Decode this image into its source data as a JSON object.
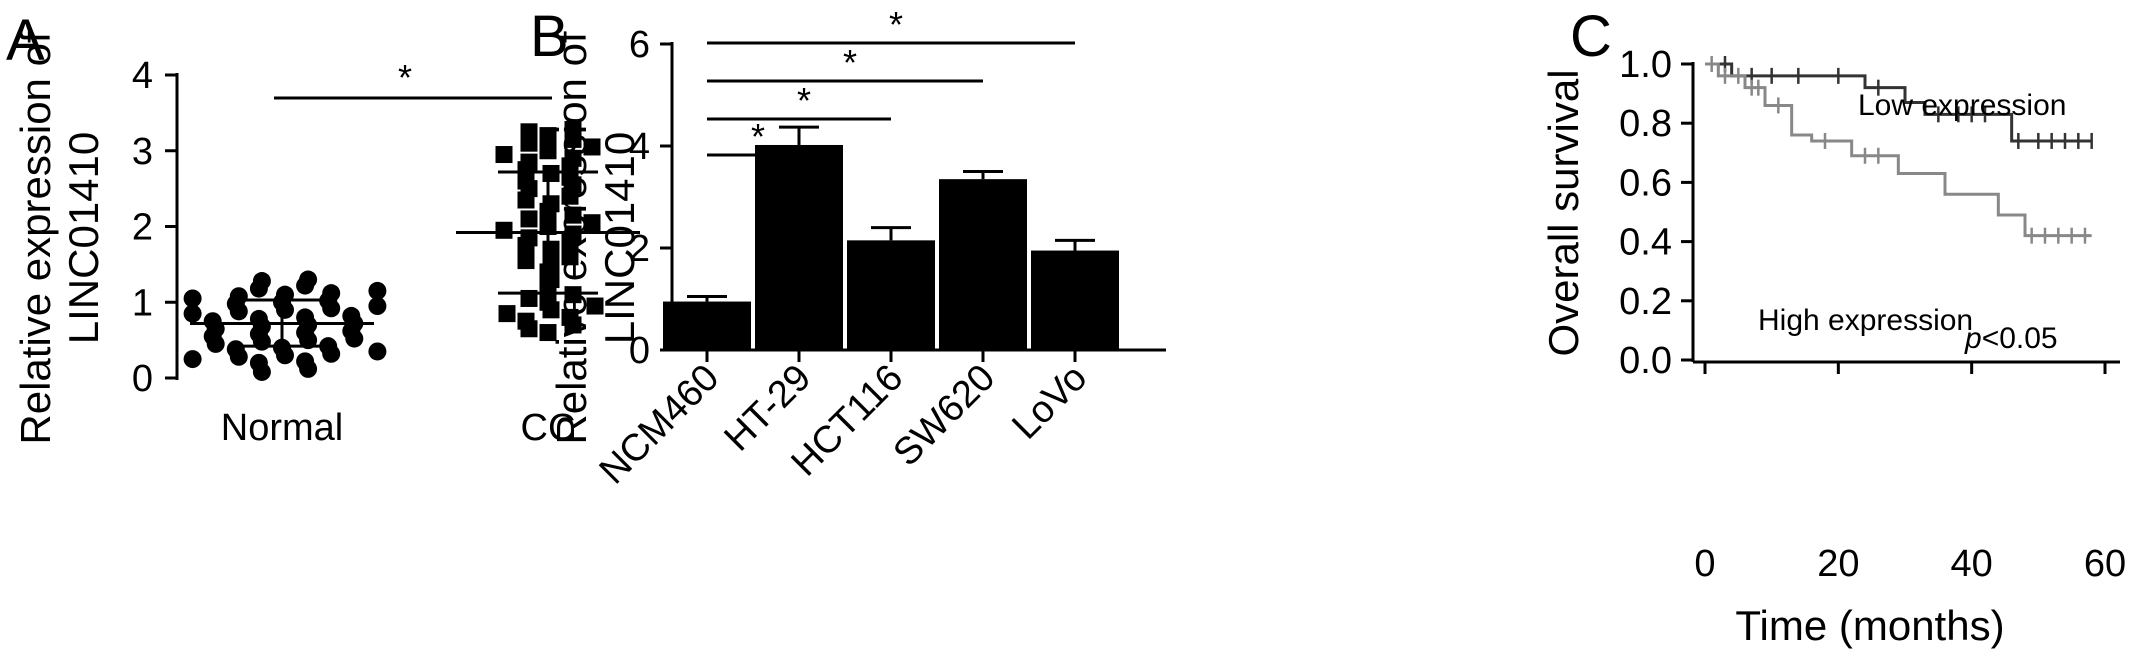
{
  "chart_data": [
    {
      "panel": "A",
      "type": "scatter",
      "ylabel_lines": [
        "Relative expression of",
        "LINC01410"
      ],
      "ylim": [
        0,
        4
      ],
      "yticks": [
        "0",
        "1",
        "2",
        "3",
        "4"
      ],
      "categories": [
        "Normal",
        "CC"
      ],
      "markers": [
        "circle",
        "square"
      ],
      "summary": [
        {
          "category": "Normal",
          "mean": 0.72,
          "sd_low": 0.42,
          "sd_high": 1.03
        },
        {
          "category": "CC",
          "mean": 1.92,
          "sd_low": 1.12,
          "sd_high": 2.72
        }
      ],
      "points": {
        "Normal": [
          0.08,
          0.12,
          0.2,
          0.22,
          0.25,
          0.28,
          0.3,
          0.32,
          0.35,
          0.38,
          0.4,
          0.42,
          0.45,
          0.48,
          0.5,
          0.52,
          0.55,
          0.58,
          0.6,
          0.62,
          0.65,
          0.68,
          0.7,
          0.72,
          0.75,
          0.78,
          0.8,
          0.82,
          0.85,
          0.88,
          0.9,
          0.92,
          0.95,
          0.98,
          1.0,
          1.02,
          1.05,
          1.08,
          1.1,
          1.12,
          1.15,
          1.18,
          1.22,
          1.28,
          1.3
        ],
        "CC": [
          0.6,
          0.65,
          0.7,
          0.75,
          0.8,
          0.85,
          0.9,
          0.95,
          1.0,
          1.05,
          1.1,
          1.2,
          1.3,
          1.4,
          1.5,
          1.55,
          1.6,
          1.7,
          1.75,
          1.8,
          1.85,
          1.9,
          1.95,
          2.0,
          2.05,
          2.1,
          2.15,
          2.2,
          2.3,
          2.35,
          2.4,
          2.5,
          2.55,
          2.6,
          2.65,
          2.7,
          2.75,
          2.8,
          2.85,
          2.9,
          2.95,
          3.0,
          3.05,
          3.1,
          3.15,
          3.2,
          3.25,
          3.28
        ]
      },
      "significance": [
        {
          "from": "Normal",
          "to": "CC",
          "label": "*"
        }
      ]
    },
    {
      "panel": "B",
      "type": "bar",
      "ylabel_lines": [
        "Relative expression of",
        "LINC01410"
      ],
      "ylim": [
        0,
        6
      ],
      "yticks": [
        "0",
        "2",
        "4",
        "6"
      ],
      "categories": [
        "NCM460",
        "HT-29",
        "HCT116",
        "SW620",
        "LoVo"
      ],
      "values": [
        0.95,
        4.02,
        2.15,
        3.35,
        1.95
      ],
      "errors": [
        0.1,
        0.35,
        0.25,
        0.15,
        0.2
      ],
      "significance": [
        {
          "from": "NCM460",
          "to": "HT-29",
          "label": "*"
        },
        {
          "from": "NCM460",
          "to": "HCT116",
          "label": "*"
        },
        {
          "from": "NCM460",
          "to": "SW620",
          "label": "*"
        },
        {
          "from": "NCM460",
          "to": "LoVo",
          "label": "*"
        }
      ]
    },
    {
      "panel": "C",
      "type": "line",
      "xlabel": "Time (months)",
      "ylabel": "Overall survival",
      "xlim": [
        0,
        60
      ],
      "ylim": [
        0,
        1.0
      ],
      "xticks": [
        "0",
        "20",
        "40",
        "60"
      ],
      "yticks": [
        "0.0",
        "0.2",
        "0.4",
        "0.6",
        "0.8",
        "1.0"
      ],
      "annotation": {
        "italic": "p",
        "rest": "<0.05"
      },
      "series": [
        {
          "name": "Low expression",
          "color": "#333333",
          "steps": [
            [
              0,
              1.0
            ],
            [
              4,
              0.96
            ],
            [
              24,
              0.92
            ],
            [
              30,
              0.87
            ],
            [
              33,
              0.83
            ],
            [
              46,
              0.74
            ],
            [
              58,
              0.74
            ]
          ],
          "censored": [
            [
              3,
              1.0
            ],
            [
              7,
              0.96
            ],
            [
              10,
              0.96
            ],
            [
              14,
              0.96
            ],
            [
              20,
              0.96
            ],
            [
              26,
              0.92
            ],
            [
              35,
              0.83
            ],
            [
              38,
              0.83
            ],
            [
              40,
              0.83
            ],
            [
              42,
              0.83
            ],
            [
              47,
              0.74
            ],
            [
              50,
              0.74
            ],
            [
              52,
              0.74
            ],
            [
              54,
              0.74
            ],
            [
              56,
              0.74
            ],
            [
              58,
              0.74
            ]
          ]
        },
        {
          "name": "High expression",
          "color": "#888888",
          "steps": [
            [
              0,
              1.0
            ],
            [
              2,
              0.96
            ],
            [
              6,
              0.92
            ],
            [
              9,
              0.86
            ],
            [
              13,
              0.76
            ],
            [
              16,
              0.74
            ],
            [
              22,
              0.69
            ],
            [
              29,
              0.63
            ],
            [
              36,
              0.56
            ],
            [
              44,
              0.49
            ],
            [
              48,
              0.42
            ],
            [
              58,
              0.42
            ]
          ],
          "censored": [
            [
              1,
              1.0
            ],
            [
              3,
              0.96
            ],
            [
              5,
              0.96
            ],
            [
              7,
              0.92
            ],
            [
              8,
              0.92
            ],
            [
              11,
              0.86
            ],
            [
              18,
              0.74
            ],
            [
              24,
              0.69
            ],
            [
              26,
              0.69
            ],
            [
              49,
              0.42
            ],
            [
              51,
              0.42
            ],
            [
              53,
              0.42
            ],
            [
              55,
              0.42
            ],
            [
              57,
              0.42
            ]
          ]
        }
      ]
    }
  ]
}
